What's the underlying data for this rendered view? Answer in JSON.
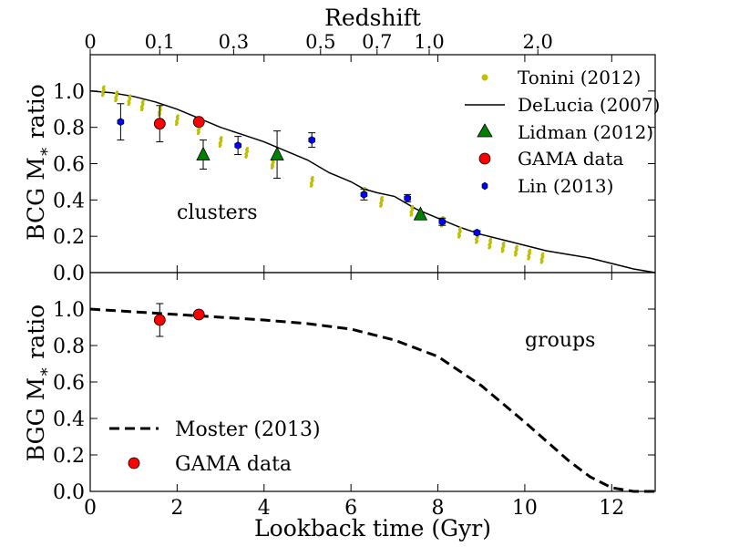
{
  "chart_data": [
    {
      "type": "scatter",
      "panel": "top",
      "ylabel": "BCG M* ratio",
      "top_axis_title": "Redshift",
      "redshift_ticks": [
        {
          "label": "0",
          "t": 0
        },
        {
          "label": "0.1",
          "t": 1.6
        },
        {
          "label": "0.3",
          "t": 3.3
        },
        {
          "label": "0.5",
          "t": 5.3
        },
        {
          "label": "0.7",
          "t": 6.6
        },
        {
          "label": "1.0",
          "t": 7.8
        },
        {
          "label": "2.0",
          "t": 10.3
        }
      ],
      "xlim": [
        0,
        13
      ],
      "ylim": [
        0,
        1.2
      ],
      "yticks": [
        "0.0",
        "0.2",
        "0.4",
        "0.6",
        "0.8",
        "1.0"
      ],
      "annotation": "clusters",
      "legend": [
        {
          "name": "Tonini (2012)",
          "marker": "dot",
          "color": "#bfbf00"
        },
        {
          "name": "DeLucia (2007)",
          "marker": "line",
          "color": "#000000"
        },
        {
          "name": "Lidman (2012)",
          "marker": "triangle",
          "color": "#008000"
        },
        {
          "name": "GAMA data",
          "marker": "circle",
          "color": "#ff0000"
        },
        {
          "name": "Lin (2013)",
          "marker": "hexagon",
          "color": "#0000ff"
        }
      ],
      "series": {
        "delucia": [
          [
            0,
            1.0
          ],
          [
            0.5,
            0.99
          ],
          [
            1,
            0.97
          ],
          [
            1.5,
            0.94
          ],
          [
            2,
            0.9
          ],
          [
            2.5,
            0.85
          ],
          [
            3,
            0.8
          ],
          [
            3.5,
            0.76
          ],
          [
            4,
            0.72
          ],
          [
            4.5,
            0.67
          ],
          [
            5,
            0.62
          ],
          [
            5.5,
            0.55
          ],
          [
            6,
            0.5
          ],
          [
            6.3,
            0.46
          ],
          [
            6.6,
            0.44
          ],
          [
            7,
            0.42
          ],
          [
            7.5,
            0.35
          ],
          [
            8,
            0.3
          ],
          [
            8.5,
            0.25
          ],
          [
            9,
            0.21
          ],
          [
            9.5,
            0.18
          ],
          [
            10,
            0.15
          ],
          [
            10.5,
            0.12
          ],
          [
            11,
            0.1
          ],
          [
            11.5,
            0.08
          ],
          [
            12,
            0.05
          ],
          [
            12.5,
            0.02
          ],
          [
            13,
            0.0
          ]
        ],
        "tonini": [
          [
            0.3,
            1.0
          ],
          [
            0.6,
            0.97
          ],
          [
            0.9,
            0.95
          ],
          [
            1.2,
            0.92
          ],
          [
            1.6,
            0.89
          ],
          [
            2.0,
            0.84
          ],
          [
            2.5,
            0.79
          ],
          [
            3.0,
            0.72
          ],
          [
            3.6,
            0.66
          ],
          [
            4.2,
            0.6
          ],
          [
            5.1,
            0.5
          ],
          [
            6.3,
            0.44
          ],
          [
            6.7,
            0.39
          ],
          [
            7.4,
            0.34
          ],
          [
            8.1,
            0.28
          ],
          [
            8.5,
            0.22
          ],
          [
            8.9,
            0.19
          ],
          [
            9.2,
            0.16
          ],
          [
            9.5,
            0.14
          ],
          [
            9.8,
            0.12
          ],
          [
            10.1,
            0.1
          ],
          [
            10.4,
            0.08
          ]
        ],
        "lidman": [
          {
            "x": 2.6,
            "y": 0.65,
            "err": 0.08
          },
          {
            "x": 4.3,
            "y": 0.65,
            "err": 0.13
          },
          {
            "x": 7.6,
            "y": 0.32,
            "err": 0.0
          }
        ],
        "gama": [
          {
            "x": 1.6,
            "y": 0.82,
            "err": 0.1
          },
          {
            "x": 2.5,
            "y": 0.83,
            "err": 0.0
          }
        ],
        "lin": [
          {
            "x": 0.7,
            "y": 0.83,
            "err": 0.1
          },
          {
            "x": 3.4,
            "y": 0.7,
            "err": 0.05
          },
          {
            "x": 5.1,
            "y": 0.73,
            "err": 0.04
          },
          {
            "x": 6.3,
            "y": 0.43,
            "err": 0.03
          },
          {
            "x": 7.3,
            "y": 0.41,
            "err": 0.02
          },
          {
            "x": 8.1,
            "y": 0.28,
            "err": 0.02
          },
          {
            "x": 8.9,
            "y": 0.22,
            "err": 0.01
          }
        ]
      }
    },
    {
      "type": "line",
      "panel": "bottom",
      "xlabel": "Lookback time (Gyr)",
      "ylabel": "BGG M* ratio",
      "xlim": [
        0,
        13
      ],
      "ylim": [
        0,
        1.2
      ],
      "xticks": [
        "0",
        "2",
        "4",
        "6",
        "8",
        "10",
        "12"
      ],
      "yticks": [
        "0.0",
        "0.2",
        "0.4",
        "0.6",
        "0.8",
        "1.0"
      ],
      "annotation": "groups",
      "legend": [
        {
          "name": "Moster (2013)",
          "marker": "dashed-line",
          "color": "#000000"
        },
        {
          "name": "GAMA data",
          "marker": "circle",
          "color": "#ff0000"
        }
      ],
      "series": {
        "moster": [
          [
            0,
            1.0
          ],
          [
            1,
            0.985
          ],
          [
            2,
            0.97
          ],
          [
            3,
            0.955
          ],
          [
            4,
            0.94
          ],
          [
            5,
            0.92
          ],
          [
            6,
            0.89
          ],
          [
            7,
            0.83
          ],
          [
            8,
            0.74
          ],
          [
            9,
            0.58
          ],
          [
            10,
            0.38
          ],
          [
            11,
            0.17
          ],
          [
            11.5,
            0.08
          ],
          [
            12,
            0.02
          ],
          [
            12.5,
            0.0
          ],
          [
            13,
            0.0
          ]
        ],
        "gama": [
          {
            "x": 1.6,
            "y": 0.94,
            "err": 0.09
          },
          {
            "x": 2.5,
            "y": 0.97,
            "err": 0.0
          }
        ]
      }
    }
  ]
}
